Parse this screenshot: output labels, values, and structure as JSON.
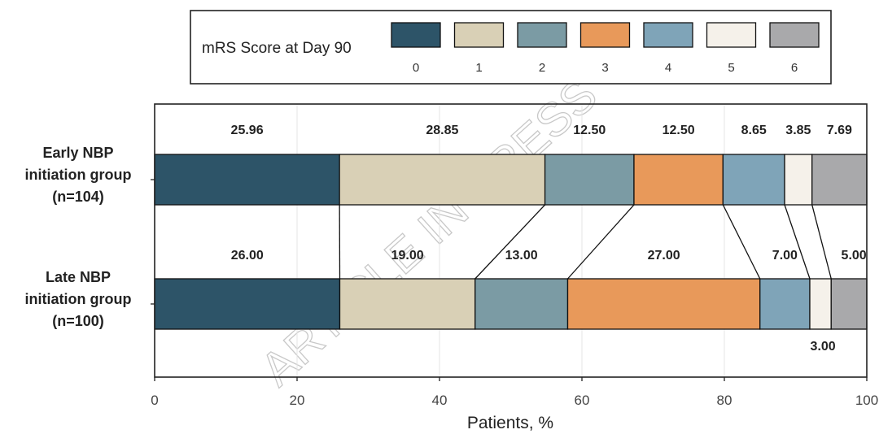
{
  "chart_data": {
    "type": "bar",
    "orientation": "horizontal",
    "stacked": true,
    "legend_title": "mRS Score at Day 90",
    "legend_position": "top",
    "colors": [
      "#2d5468",
      "#d9d0b6",
      "#7b9ba4",
      "#e8995a",
      "#7fa4b8",
      "#f5f1ea",
      "#a9a9ab"
    ],
    "categories": [
      {
        "lines": [
          "Early NBP",
          "initiation group",
          "(n=104)"
        ]
      },
      {
        "lines": [
          "Late NBP",
          "initiation group",
          "(n=100)"
        ]
      }
    ],
    "series": [
      {
        "name": "0",
        "values": [
          25.96,
          26.0
        ],
        "labels": [
          "25.96",
          "26.00"
        ]
      },
      {
        "name": "1",
        "values": [
          28.85,
          19.0
        ],
        "labels": [
          "28.85",
          "19.00"
        ]
      },
      {
        "name": "2",
        "values": [
          12.5,
          13.0
        ],
        "labels": [
          "12.50",
          "13.00"
        ]
      },
      {
        "name": "3",
        "values": [
          12.5,
          27.0
        ],
        "labels": [
          "12.50",
          "27.00"
        ]
      },
      {
        "name": "4",
        "values": [
          8.65,
          7.0
        ],
        "labels": [
          "8.65",
          "7.00"
        ]
      },
      {
        "name": "5",
        "values": [
          3.85,
          3.0
        ],
        "labels": [
          "3.85",
          "3.00"
        ]
      },
      {
        "name": "6",
        "values": [
          7.69,
          5.0
        ],
        "labels": [
          "7.69",
          "5.00"
        ]
      }
    ],
    "xlabel": "Patients, %",
    "xlim": [
      0,
      100
    ],
    "xticks": [
      0,
      20,
      40,
      60,
      80,
      100
    ],
    "grid": "vertical",
    "watermark": "ARTICLE IN PRESS"
  }
}
